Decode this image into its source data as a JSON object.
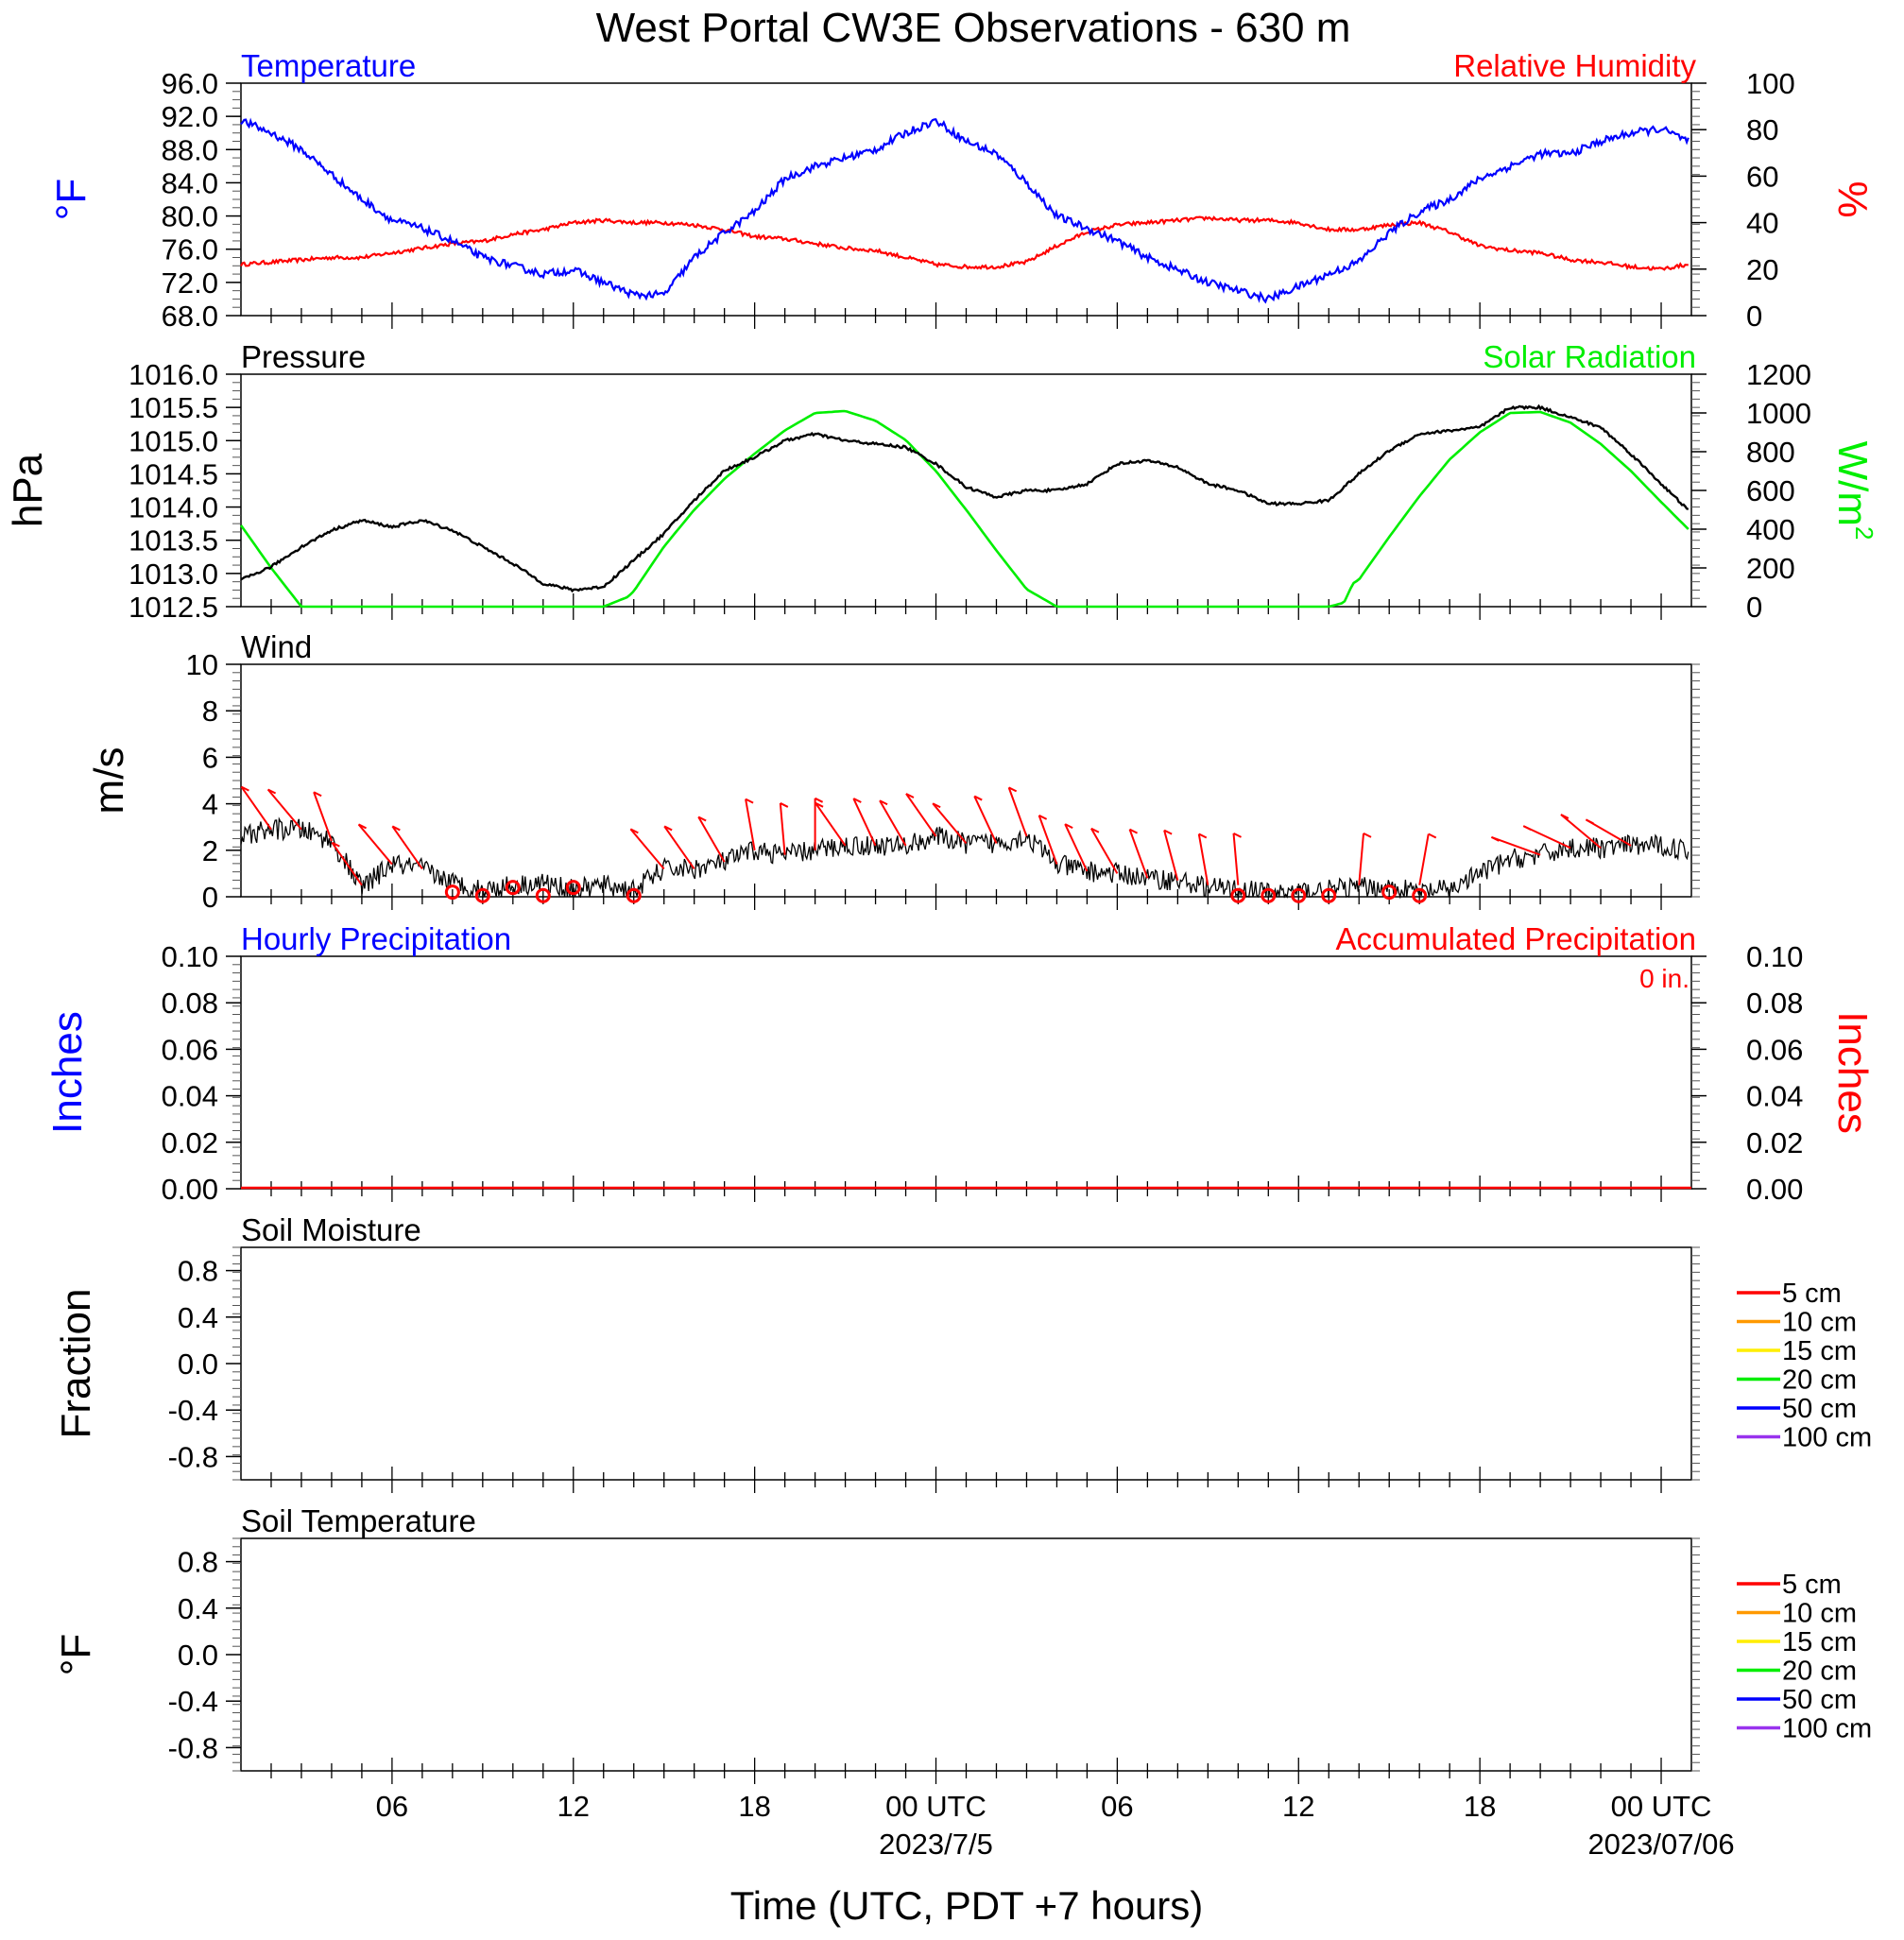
{
  "title": "West Portal CW3E Observations - 630 m",
  "x_axis": {
    "label": "Time (UTC, PDT +7 hours)",
    "tick_labels": [
      "06",
      "12",
      "18",
      "00 UTC",
      "06",
      "12",
      "18",
      "00 UTC"
    ],
    "date_labels": [
      "2023/7/5",
      "2023/07/06"
    ]
  },
  "colors": {
    "temperature": "#0000ff",
    "humidity": "#ff0000",
    "pressure": "#000000",
    "solar": "#00ee00",
    "wind": "#000000",
    "wind_barb": "#ff0000",
    "precip_hourly": "#0000ff",
    "precip_accum": "#ff0000"
  },
  "panels": {
    "temp_rh": {
      "left_title": "Temperature",
      "right_title": "Relative Humidity",
      "left_unit": "°F",
      "right_unit": "%",
      "left_ticks": [
        "96.0",
        "92.0",
        "88.0",
        "84.0",
        "80.0",
        "76.0",
        "72.0",
        "68.0"
      ],
      "right_ticks": [
        "100",
        "80",
        "60",
        "40",
        "20",
        "0"
      ]
    },
    "pressure_solar": {
      "left_title": "Pressure",
      "right_title": "Solar Radiation",
      "left_unit": "hPa",
      "right_unit": "W/m",
      "right_unit_sup": "2",
      "left_ticks": [
        "1016.0",
        "1015.5",
        "1015.0",
        "1014.5",
        "1014.0",
        "1013.5",
        "1013.0",
        "1012.5"
      ],
      "right_ticks": [
        "1200",
        "1000",
        "800",
        "600",
        "400",
        "200",
        "0"
      ]
    },
    "wind": {
      "left_title": "Wind",
      "left_unit": "m/s",
      "left_ticks": [
        "10",
        "8",
        "6",
        "4",
        "2",
        "0"
      ]
    },
    "precip": {
      "left_title": "Hourly Precipitation",
      "right_title": "Accumulated Precipitation",
      "accum_total": "0 in.",
      "left_unit": "Inches",
      "right_unit": "Inches",
      "left_ticks": [
        "0.10",
        "0.08",
        "0.06",
        "0.04",
        "0.02",
        "0.00"
      ],
      "right_ticks": [
        "0.10",
        "0.08",
        "0.06",
        "0.04",
        "0.02",
        "0.00"
      ]
    },
    "soil_moisture": {
      "left_title": "Soil Moisture",
      "left_unit": "Fraction",
      "left_ticks": [
        "0.8",
        "0.4",
        "0.0",
        "-0.4",
        "-0.8"
      ]
    },
    "soil_temp": {
      "left_title": "Soil Temperature",
      "left_unit": "°F",
      "left_ticks": [
        "0.8",
        "0.4",
        "0.0",
        "-0.4",
        "-0.8"
      ]
    }
  },
  "soil_legend": [
    {
      "label": "5 cm",
      "color": "#ff0000"
    },
    {
      "label": "10 cm",
      "color": "#ff9900"
    },
    {
      "label": "15 cm",
      "color": "#ffee00"
    },
    {
      "label": "20 cm",
      "color": "#00ee00"
    },
    {
      "label": "50 cm",
      "color": "#0000ff"
    },
    {
      "label": "100 cm",
      "color": "#9933ee"
    }
  ],
  "chart_data": [
    {
      "type": "line",
      "x_unit": "hours since 2023-07-04 00 UTC",
      "xlim": [
        1,
        49
      ],
      "series": [
        {
          "name": "Temperature",
          "axis": "left",
          "unit": "°F",
          "ylim": [
            68,
            96
          ],
          "x": [
            1,
            2,
            3,
            4,
            5,
            6,
            7,
            8,
            9,
            10,
            11,
            12,
            13,
            14,
            15,
            16,
            17,
            18,
            19,
            20,
            21,
            22,
            23,
            24,
            25,
            26,
            27,
            28,
            29,
            30,
            31,
            32,
            33,
            34,
            35,
            36,
            37,
            38,
            39,
            40,
            41,
            42,
            43,
            44,
            45,
            46,
            47,
            48,
            48.9
          ],
          "y": [
            91.5,
            90,
            88,
            85,
            82,
            79.5,
            78.5,
            77,
            75,
            74,
            73,
            73.5,
            72,
            70.5,
            70.5,
            75,
            78,
            80.5,
            84.5,
            86,
            87,
            88,
            90,
            91.5,
            89,
            87.5,
            84,
            80,
            78.5,
            77,
            75,
            73.5,
            72,
            71,
            70,
            71.5,
            73,
            74.5,
            78,
            80.5,
            82,
            84.5,
            86,
            87.5,
            87.5,
            89,
            90,
            90.5,
            89
          ]
        },
        {
          "name": "Relative Humidity",
          "axis": "right",
          "unit": "%",
          "ylim": [
            0,
            100
          ],
          "x": [
            1,
            2,
            3,
            4,
            5,
            6,
            7,
            8,
            9,
            10,
            11,
            12,
            13,
            14,
            15,
            16,
            17,
            18,
            19,
            20,
            21,
            22,
            23,
            24,
            25,
            26,
            27,
            28,
            29,
            30,
            31,
            32,
            33,
            34,
            35,
            36,
            37,
            38,
            39,
            40,
            41,
            42,
            43,
            44,
            45,
            46,
            47,
            48,
            48.9
          ],
          "y": [
            22,
            23,
            24,
            25,
            25,
            27,
            29,
            31,
            32,
            35,
            37,
            40,
            41,
            40,
            40,
            39,
            37,
            34,
            33,
            31,
            29,
            28,
            25,
            22,
            21,
            21,
            23,
            30,
            36,
            39,
            40,
            41,
            42,
            41,
            41,
            40,
            37,
            37,
            39,
            40,
            36,
            30,
            28,
            27,
            24,
            23,
            21,
            20,
            22
          ]
        }
      ]
    },
    {
      "type": "line",
      "x_unit": "hours since 2023-07-04 00 UTC",
      "xlim": [
        1,
        49
      ],
      "series": [
        {
          "name": "Pressure",
          "axis": "left",
          "unit": "hPa",
          "ylim": [
            1012.5,
            1016.0
          ],
          "x": [
            1,
            2,
            3,
            4,
            5,
            6,
            7,
            8,
            9,
            10,
            11,
            12,
            13,
            14,
            15,
            16,
            17,
            18,
            19,
            20,
            21,
            22,
            23,
            24,
            25,
            26,
            27,
            28,
            29,
            30,
            31,
            32,
            33,
            34,
            35,
            36,
            37,
            38,
            39,
            40,
            41,
            42,
            43,
            44,
            45,
            46,
            47,
            48,
            48.9
          ],
          "y": [
            1012.9,
            1013.1,
            1013.4,
            1013.65,
            1013.8,
            1013.7,
            1013.8,
            1013.65,
            1013.4,
            1013.15,
            1012.85,
            1012.75,
            1012.8,
            1013.2,
            1013.6,
            1014.1,
            1014.55,
            1014.75,
            1015.0,
            1015.1,
            1015.0,
            1014.95,
            1014.9,
            1014.65,
            1014.3,
            1014.15,
            1014.25,
            1014.25,
            1014.35,
            1014.65,
            1014.7,
            1014.6,
            1014.35,
            1014.25,
            1014.05,
            1014.05,
            1014.1,
            1014.5,
            1014.85,
            1015.1,
            1015.15,
            1015.2,
            1015.5,
            1015.5,
            1015.35,
            1015.2,
            1014.8,
            1014.35,
            1013.95
          ]
        },
        {
          "name": "Solar Radiation",
          "axis": "right",
          "unit": "W/m2",
          "ylim": [
            0,
            1200
          ],
          "x": [
            1,
            2,
            3,
            4,
            5,
            6,
            7,
            8,
            9,
            10,
            11,
            12,
            13,
            13.8,
            14,
            15,
            16,
            17,
            18,
            19,
            20,
            21,
            22,
            23,
            24,
            25,
            26,
            27,
            28,
            29,
            30,
            31,
            32,
            33,
            34,
            35,
            36,
            37,
            37.5,
            37.8,
            38,
            39,
            40,
            41,
            42,
            43,
            44,
            45,
            46,
            47,
            48,
            48.9
          ],
          "y": [
            420,
            200,
            0,
            0,
            0,
            0,
            0,
            0,
            0,
            0,
            0,
            0,
            0,
            50,
            80,
            310,
            500,
            660,
            790,
            910,
            1000,
            1010,
            960,
            860,
            700,
            500,
            290,
            90,
            0,
            0,
            0,
            0,
            0,
            0,
            0,
            0,
            0,
            0,
            20,
            120,
            140,
            360,
            570,
            760,
            900,
            1000,
            1005,
            950,
            840,
            700,
            540,
            400
          ]
        }
      ]
    },
    {
      "type": "line",
      "x_unit": "hours since 2023-07-04 00 UTC",
      "xlim": [
        1,
        49
      ],
      "ylim": [
        0,
        10
      ],
      "series": [
        {
          "name": "Wind",
          "unit": "m/s",
          "x": [
            1,
            2,
            3,
            4,
            5,
            6,
            7,
            8,
            9,
            10,
            11,
            12,
            13,
            14,
            15,
            16,
            17,
            18,
            19,
            20,
            21,
            22,
            23,
            24,
            25,
            26,
            27,
            28,
            29,
            30,
            31,
            32,
            33,
            34,
            35,
            36,
            37,
            38,
            39,
            40,
            41,
            42,
            43,
            44,
            45,
            46,
            47,
            48,
            48.9
          ],
          "y": [
            2.6,
            2.9,
            2.9,
            2.4,
            0.4,
            1.4,
            1.2,
            0.6,
            0.3,
            0.5,
            0.6,
            0.3,
            0.5,
            0.3,
            1.2,
            1.2,
            1.5,
            2.0,
            1.8,
            2.0,
            2.2,
            2.2,
            2.2,
            2.6,
            2.3,
            2.3,
            2.6,
            1.4,
            1.1,
            1.0,
            0.8,
            0.7,
            0.4,
            0.3,
            0.2,
            0.2,
            0.3,
            0.4,
            0.4,
            0.2,
            0.3,
            1.0,
            1.6,
            1.8,
            2.1,
            2.1,
            2.2,
            2.2,
            2.0
          ]
        }
      ],
      "barbs_x": [
        2,
        3,
        4,
        5,
        6,
        7,
        15,
        16,
        17,
        18,
        19,
        20,
        21,
        22,
        23,
        24,
        25,
        26,
        27,
        28,
        29,
        30,
        31,
        32,
        33,
        34,
        38,
        40,
        44,
        45,
        46,
        47
      ]
    },
    {
      "type": "bar",
      "x_unit": "hours since 2023-07-04 00 UTC",
      "xlim": [
        1,
        49
      ],
      "ylim": [
        0,
        0.1
      ],
      "series": [
        {
          "name": "Hourly Precipitation",
          "axis": "left",
          "unit": "Inches",
          "values": [
            0
          ]
        },
        {
          "name": "Accumulated Precipitation",
          "axis": "right",
          "unit": "Inches",
          "values": [
            0
          ]
        }
      ]
    },
    {
      "type": "line",
      "ylim": [
        -1,
        1
      ],
      "series": []
    },
    {
      "type": "line",
      "ylim": [
        -1,
        1
      ],
      "series": []
    }
  ]
}
